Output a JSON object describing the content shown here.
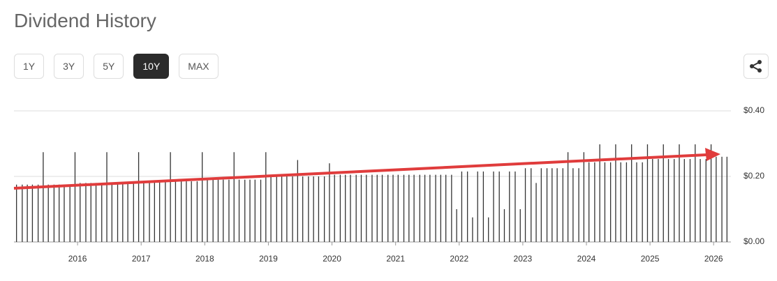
{
  "header": {
    "title": "Dividend History"
  },
  "range_buttons": [
    "1Y",
    "3Y",
    "5Y",
    "10Y",
    "MAX"
  ],
  "active_range_index": 3,
  "chart_data": {
    "type": "bar",
    "x": [
      2015.04,
      2015.13,
      2015.21,
      2015.29,
      2015.38,
      2015.46,
      2015.54,
      2015.63,
      2015.71,
      2015.79,
      2015.88,
      2015.96,
      2016.04,
      2016.13,
      2016.21,
      2016.29,
      2016.38,
      2016.46,
      2016.54,
      2016.63,
      2016.71,
      2016.79,
      2016.88,
      2016.96,
      2017.04,
      2017.13,
      2017.21,
      2017.29,
      2017.38,
      2017.46,
      2017.54,
      2017.63,
      2017.71,
      2017.79,
      2017.88,
      2017.96,
      2018.04,
      2018.13,
      2018.21,
      2018.29,
      2018.38,
      2018.46,
      2018.54,
      2018.63,
      2018.71,
      2018.79,
      2018.88,
      2018.96,
      2019.04,
      2019.13,
      2019.21,
      2019.29,
      2019.38,
      2019.46,
      2019.54,
      2019.63,
      2019.71,
      2019.79,
      2019.88,
      2019.96,
      2020.04,
      2020.13,
      2020.21,
      2020.29,
      2020.38,
      2020.46,
      2020.54,
      2020.63,
      2020.71,
      2020.79,
      2020.88,
      2020.96,
      2021.04,
      2021.13,
      2021.21,
      2021.29,
      2021.38,
      2021.46,
      2021.54,
      2021.63,
      2021.71,
      2021.79,
      2021.88,
      2021.96,
      2022.04,
      2022.13,
      2022.21,
      2022.29,
      2022.38,
      2022.46,
      2022.54,
      2022.63,
      2022.71,
      2022.79,
      2022.88,
      2022.96,
      2023.04,
      2023.13,
      2023.21,
      2023.29,
      2023.38,
      2023.46,
      2023.54,
      2023.63,
      2023.71,
      2023.79,
      2023.88,
      2023.96,
      2024.04,
      2024.13,
      2024.21,
      2024.29,
      2024.38,
      2024.46,
      2024.54,
      2024.63,
      2024.71,
      2024.79,
      2024.88,
      2024.96,
      2025.04,
      2025.13,
      2025.21,
      2025.29,
      2025.38,
      2025.46,
      2025.54,
      2025.63,
      2025.71,
      2025.79,
      2025.88,
      2025.96,
      2026.04,
      2026.13,
      2026.21
    ],
    "values": [
      0.175,
      0.175,
      0.175,
      0.175,
      0.175,
      0.274,
      0.175,
      0.175,
      0.175,
      0.175,
      0.175,
      0.274,
      0.18,
      0.18,
      0.18,
      0.18,
      0.18,
      0.274,
      0.18,
      0.18,
      0.18,
      0.18,
      0.18,
      0.274,
      0.185,
      0.185,
      0.185,
      0.185,
      0.185,
      0.274,
      0.185,
      0.185,
      0.185,
      0.185,
      0.185,
      0.274,
      0.19,
      0.19,
      0.19,
      0.19,
      0.19,
      0.274,
      0.19,
      0.19,
      0.19,
      0.19,
      0.19,
      0.274,
      0.2,
      0.2,
      0.2,
      0.2,
      0.2,
      0.25,
      0.2,
      0.2,
      0.2,
      0.2,
      0.2,
      0.24,
      0.205,
      0.205,
      0.205,
      0.205,
      0.205,
      0.205,
      0.205,
      0.205,
      0.205,
      0.205,
      0.205,
      0.205,
      0.205,
      0.205,
      0.205,
      0.205,
      0.205,
      0.205,
      0.205,
      0.205,
      0.205,
      0.205,
      0.205,
      0.1,
      0.215,
      0.215,
      0.075,
      0.215,
      0.215,
      0.075,
      0.215,
      0.215,
      0.1,
      0.215,
      0.215,
      0.1,
      0.225,
      0.225,
      0.18,
      0.225,
      0.225,
      0.225,
      0.225,
      0.225,
      0.274,
      0.225,
      0.225,
      0.274,
      0.243,
      0.243,
      0.298,
      0.243,
      0.243,
      0.298,
      0.243,
      0.243,
      0.298,
      0.243,
      0.243,
      0.298,
      0.253,
      0.253,
      0.298,
      0.253,
      0.253,
      0.298,
      0.253,
      0.253,
      0.298,
      0.253,
      0.253,
      0.298,
      0.26,
      0.26,
      0.26
    ],
    "color": "#333333",
    "xlim": [
      2015,
      2026.25
    ],
    "xticks": [
      2016,
      2017,
      2018,
      2019,
      2020,
      2021,
      2022,
      2023,
      2024,
      2025,
      2026
    ],
    "ylim": [
      0,
      0.4
    ],
    "yticks": [
      {
        "value": 0,
        "label": "$0.00"
      },
      {
        "value": 0.2,
        "label": "$0.20"
      },
      {
        "value": 0.4,
        "label": "$0.40"
      }
    ],
    "grid": true
  }
}
